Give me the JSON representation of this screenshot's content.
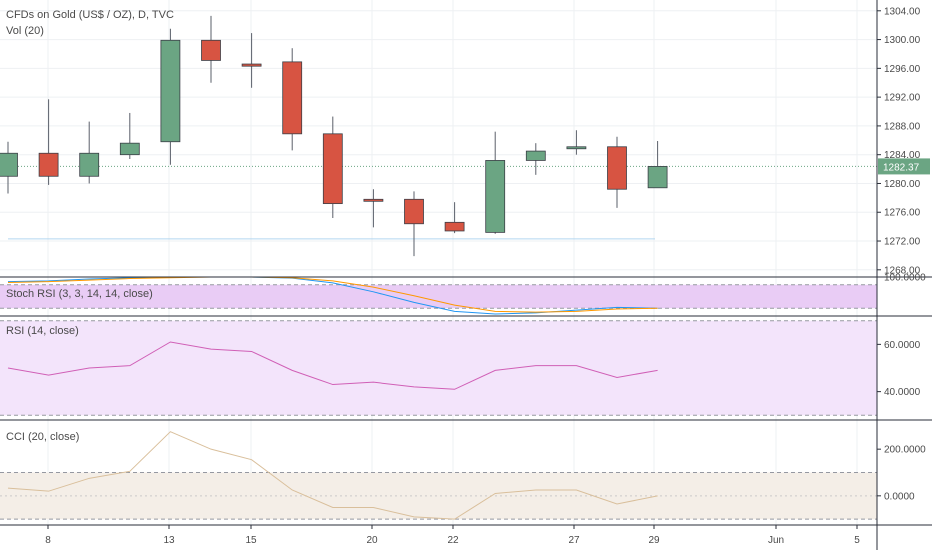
{
  "chart_data": {
    "type": "candlestick",
    "title": "CFDs on Gold (US$ / OZ), D, TVC",
    "volume_label": "Vol (20)",
    "price_axis": {
      "ticks": [
        "1304.00",
        "1300.00",
        "1296.00",
        "1292.00",
        "1288.00",
        "1284.00",
        "1280.00",
        "1276.00",
        "1272.00",
        "1268.00"
      ],
      "range": [
        1267,
        1305.5
      ],
      "last_price": "1282.37"
    },
    "x_ticks": [
      "8",
      "13",
      "15",
      "20",
      "22",
      "27",
      "29",
      "Jun",
      "5"
    ],
    "candles": [
      {
        "date": "7",
        "open": 1281.0,
        "high": 1285.8,
        "low": 1278.6,
        "close": 1284.2
      },
      {
        "date": "8",
        "open": 1284.2,
        "high": 1291.7,
        "low": 1279.8,
        "close": 1281.0
      },
      {
        "date": "9",
        "open": 1281.0,
        "high": 1288.6,
        "low": 1280.0,
        "close": 1284.2
      },
      {
        "date": "10",
        "open": 1284.0,
        "high": 1289.8,
        "low": 1283.4,
        "close": 1285.6
      },
      {
        "date": "13",
        "open": 1285.8,
        "high": 1301.5,
        "low": 1282.6,
        "close": 1299.9
      },
      {
        "date": "14",
        "open": 1299.9,
        "high": 1303.3,
        "low": 1294.0,
        "close": 1297.1
      },
      {
        "date": "15",
        "open": 1296.6,
        "high": 1300.9,
        "low": 1293.3,
        "close": 1296.3
      },
      {
        "date": "16",
        "open": 1296.9,
        "high": 1298.8,
        "low": 1284.6,
        "close": 1286.9
      },
      {
        "date": "17",
        "open": 1286.9,
        "high": 1289.3,
        "low": 1275.2,
        "close": 1277.2
      },
      {
        "date": "20",
        "open": 1277.8,
        "high": 1279.2,
        "low": 1273.9,
        "close": 1277.6
      },
      {
        "date": "21",
        "open": 1277.8,
        "high": 1278.9,
        "low": 1269.9,
        "close": 1274.4
      },
      {
        "date": "22",
        "open": 1274.6,
        "high": 1277.4,
        "low": 1273.1,
        "close": 1273.4
      },
      {
        "date": "23",
        "open": 1273.2,
        "high": 1287.2,
        "low": 1273.0,
        "close": 1283.2
      },
      {
        "date": "24",
        "open": 1283.2,
        "high": 1285.6,
        "low": 1281.2,
        "close": 1284.5
      },
      {
        "date": "27",
        "open": 1285.0,
        "high": 1287.4,
        "low": 1284.0,
        "close": 1285.1
      },
      {
        "date": "28",
        "open": 1285.1,
        "high": 1286.5,
        "low": 1276.6,
        "close": 1279.2
      },
      {
        "date": "29",
        "open": 1279.4,
        "high": 1285.9,
        "low": 1279.4,
        "close": 1282.37
      }
    ],
    "support_line": 1272.3,
    "indicators": [
      {
        "name": "Stoch RSI (3, 3, 14, 14, close)",
        "ticks": [
          "100.0000"
        ],
        "band": [
          20,
          80
        ],
        "range": [
          0,
          100
        ],
        "series": [
          {
            "color": "#2196f3",
            "values": [
              88,
              90,
              95,
              98,
              100,
              100,
              100,
              97,
              85,
              62,
              35,
              12,
              5,
              8,
              15,
              22,
              20
            ]
          },
          {
            "color": "#ff9800",
            "values": [
              86,
              88,
              92,
              96,
              98,
              100,
              100,
              98,
              90,
              74,
              52,
              28,
              12,
              10,
              12,
              18,
              20
            ]
          }
        ]
      },
      {
        "name": "RSI (14, close)",
        "ticks": [
          "60.0000",
          "40.0000"
        ],
        "band": [
          30,
          70
        ],
        "range": [
          28,
          72
        ],
        "series": [
          {
            "color": "#d05fb6",
            "values": [
              50,
              47,
              50,
              51,
              61,
              58,
              57,
              49,
              43,
              44,
              42,
              41,
              49,
              51,
              51,
              46,
              49
            ]
          }
        ]
      },
      {
        "name": "CCI (20, close)",
        "ticks": [
          "200.0000",
          "0.0000"
        ],
        "band": [
          -100,
          100
        ],
        "range": [
          -125,
          325
        ],
        "series": [
          {
            "color": "#d9bf9b",
            "values": [
              33,
              20,
              75,
              105,
              275,
              200,
              155,
              25,
              -50,
              -50,
              -90,
              -100,
              10,
              25,
              25,
              -35,
              0
            ]
          }
        ]
      }
    ],
    "colors": {
      "up": "#6ba583",
      "down": "#d75442",
      "stoch_fill": "#e9ccf5",
      "rsi_fill": "#f3e4fb",
      "cci_fill": "#f4eee7",
      "band_dash": "#9598a1"
    }
  }
}
